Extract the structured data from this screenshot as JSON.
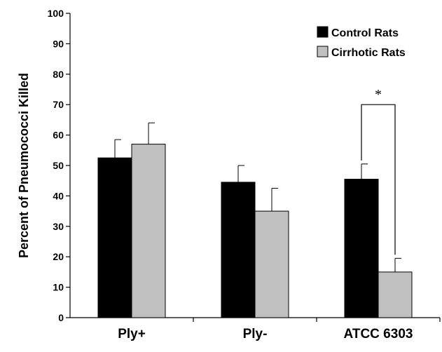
{
  "chart_data": {
    "type": "bar",
    "ylabel": "Percent of Pneumococci Killed",
    "ylim": [
      0,
      100
    ],
    "yticks": [
      0,
      10,
      20,
      30,
      40,
      50,
      60,
      70,
      80,
      90,
      100
    ],
    "categories": [
      "Ply+",
      "Ply-",
      "ATCC 6303"
    ],
    "series": [
      {
        "name": "Control Rats",
        "color": "#000000",
        "values": [
          52.5,
          44.5,
          45.5
        ],
        "errors": [
          6,
          5.5,
          5
        ]
      },
      {
        "name": "Cirrhotic Rats",
        "color": "#c0c0c0",
        "values": [
          57,
          35,
          15
        ],
        "errors": [
          7,
          7.5,
          4.5
        ]
      }
    ],
    "legend_position": "top-right",
    "grid": false,
    "annotations": [
      {
        "text": "*",
        "between": "ATCC 6303"
      }
    ]
  }
}
